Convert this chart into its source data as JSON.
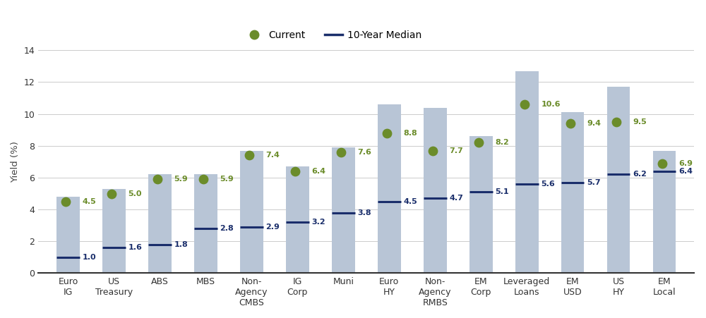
{
  "categories": [
    "Euro\nIG",
    "US\nTreasury",
    "ABS",
    "MBS",
    "Non-\nAgency\nCMBS",
    "IG\nCorp",
    "Muni",
    "Euro\nHY",
    "Non-\nAgency\nRMBS",
    "EM\nCorp",
    "Leveraged\nLoans",
    "EM\nUSD",
    "US\nHY",
    "EM\nLocal"
  ],
  "bar_top": [
    4.8,
    5.3,
    6.2,
    6.2,
    7.7,
    6.7,
    7.9,
    10.6,
    10.4,
    8.6,
    12.7,
    10.1,
    11.7,
    7.7
  ],
  "current_values": [
    4.5,
    5.0,
    5.9,
    5.9,
    7.4,
    6.4,
    7.6,
    8.8,
    7.7,
    8.2,
    10.6,
    9.4,
    9.5,
    6.9
  ],
  "median_values": [
    1.0,
    1.6,
    1.8,
    2.8,
    2.9,
    3.2,
    3.8,
    4.5,
    4.7,
    5.1,
    5.6,
    5.7,
    6.2,
    6.4
  ],
  "bar_color": "#b8c5d6",
  "bar_edge_color": "#b8c5d6",
  "current_color": "#6b8c2a",
  "median_color": "#1a2e6b",
  "ylabel": "Yield (%)",
  "ylim": [
    0,
    14
  ],
  "yticks": [
    0,
    2,
    4,
    6,
    8,
    10,
    12,
    14
  ],
  "legend_current_label": "Current",
  "legend_median_label": "10-Year Median",
  "background_color": "#ffffff",
  "grid_color": "#cccccc",
  "label_fontsize": 9.5,
  "tick_fontsize": 9,
  "bar_width": 0.5
}
